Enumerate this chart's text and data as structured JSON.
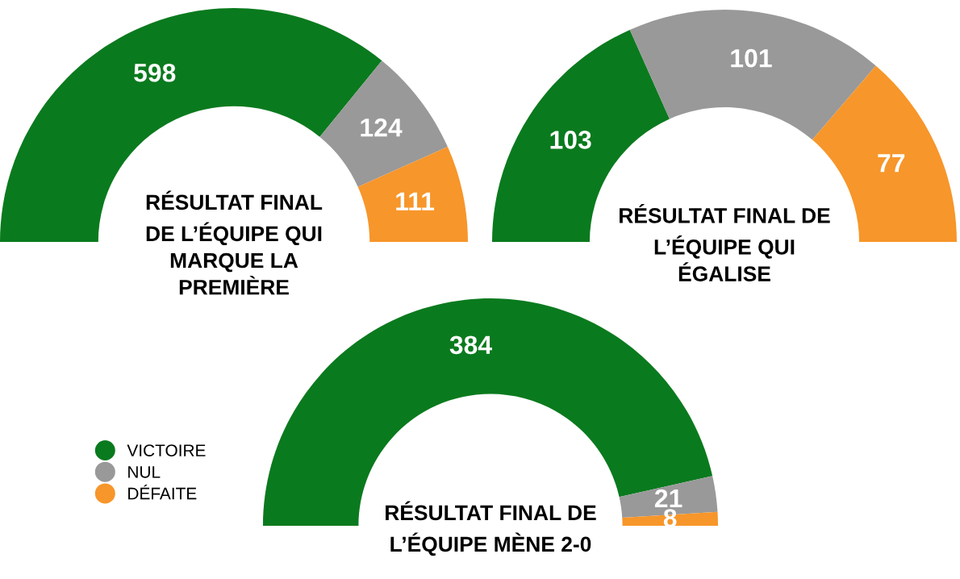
{
  "chart_data": [
    {
      "type": "donut",
      "title": "RÉSULTAT FINAL\nDE L’ÉQUIPE QUI\nMARQUE LA\nPREMIÈRE",
      "categories": [
        "VICTOIRE",
        "NUL",
        "DÉFAITE"
      ],
      "values": [
        598,
        124,
        111
      ],
      "colors": [
        "#0a7a1e",
        "#999999",
        "#f7962a"
      ],
      "data_labels": true,
      "legend": "bottom left"
    },
    {
      "type": "donut",
      "title": "RÉSULTAT FINAL DE\nL’ÉQUIPE QUI\nÉGALISE",
      "values": [
        103,
        101,
        77
      ],
      "colors": [
        "#0a7a1e",
        "#999999",
        "#f7962a"
      ],
      "data_labels": true
    },
    {
      "type": "donut",
      "title": "RÉSULTAT FINAL DE\nL’ÉQUIPE MÈNE 2-0",
      "values": [
        384,
        21,
        8
      ],
      "colors": [
        "#0a7a1e",
        "#999999",
        "#f7962a"
      ],
      "data_labels": true
    }
  ]
}
